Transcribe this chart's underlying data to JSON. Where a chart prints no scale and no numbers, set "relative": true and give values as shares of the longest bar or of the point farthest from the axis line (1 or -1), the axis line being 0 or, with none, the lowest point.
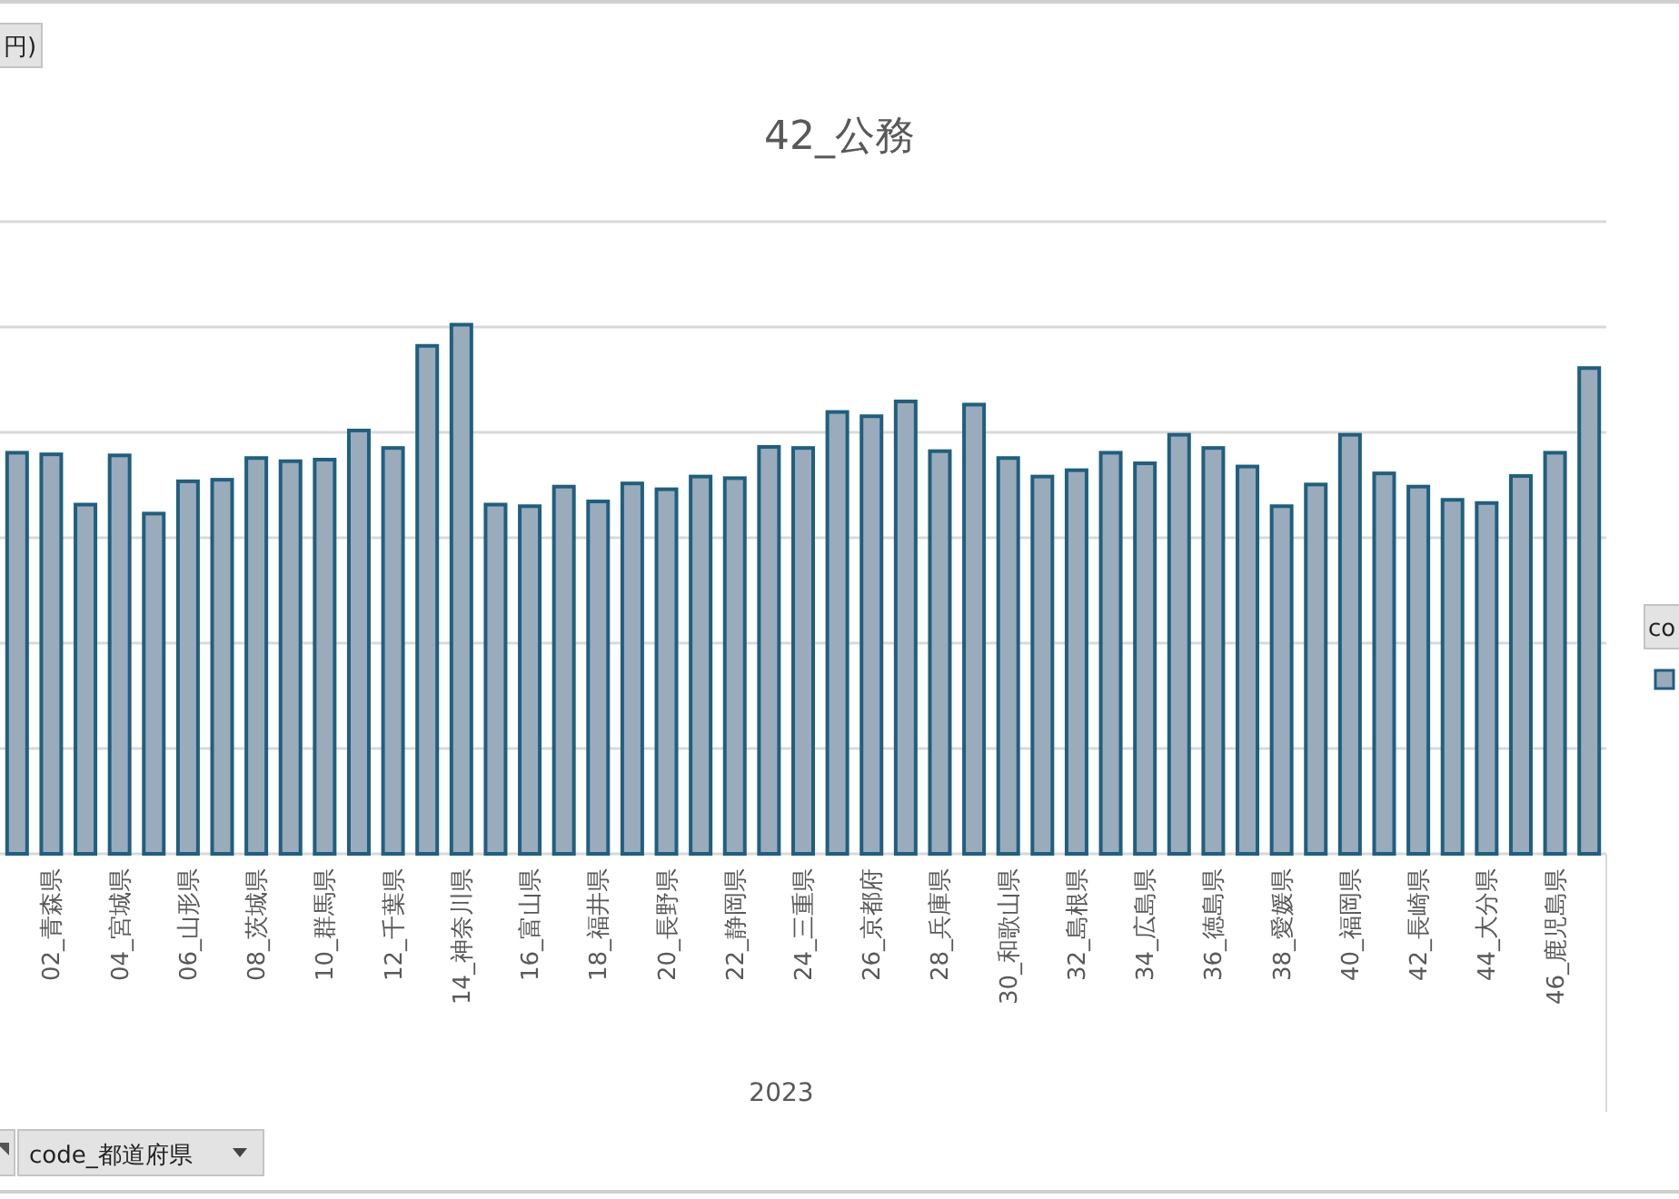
{
  "chart_data": {
    "type": "bar",
    "title": "42_公務",
    "xlabel": "2023",
    "relative": true,
    "grid": "y",
    "color": "#9aabbb",
    "categories": [
      null,
      "02_青森県",
      null,
      "04_宮城県",
      null,
      "06_山形県",
      null,
      "08_茨城県",
      null,
      "10_群馬県",
      null,
      "12_千葉県",
      null,
      "14_神奈川県",
      null,
      "16_富山県",
      null,
      "18_福井県",
      null,
      "20_長野県",
      null,
      "22_静岡県",
      null,
      "24_三重県",
      null,
      "26_京都府",
      null,
      "28_兵庫県",
      null,
      "30_和歌山県",
      null,
      "32_島根県",
      null,
      "34_広島県",
      null,
      "36_徳島県",
      null,
      "38_愛媛県",
      null,
      "40_福岡県",
      null,
      "42_長崎県",
      null,
      "44_大分県",
      null,
      "46_鹿児島県",
      null
    ],
    "values": [
      0.758,
      0.755,
      0.66,
      0.753,
      0.643,
      0.704,
      0.707,
      0.748,
      0.742,
      0.745,
      0.8,
      0.767,
      0.96,
      1,
      0.66,
      0.657,
      0.694,
      0.666,
      0.7,
      0.689,
      0.713,
      0.71,
      0.769,
      0.767,
      0.835,
      0.827,
      0.855,
      0.761,
      0.849,
      0.748,
      0.713,
      0.725,
      0.758,
      0.738,
      0.792,
      0.767,
      0.732,
      0.657,
      0.698,
      0.792,
      0.719,
      0.694,
      0.669,
      0.663,
      0.714,
      0.758,
      0.918
    ],
    "annotations": [
      "円)",
      "code_都道府県",
      "co"
    ]
  }
}
